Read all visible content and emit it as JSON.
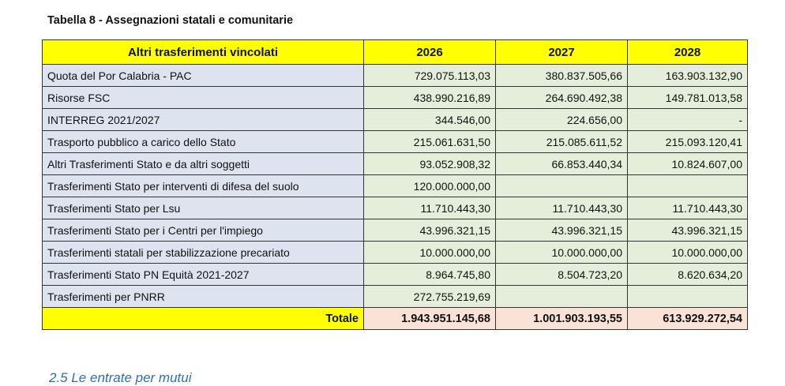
{
  "title": "Tabella 8 - Assegnazioni statali e comunitarie",
  "table": {
    "headers": [
      "Altri trasferimenti vincolati",
      "2026",
      "2027",
      "2028"
    ],
    "rows": [
      [
        "Quota del Por Calabria - PAC",
        "729.075.113,03",
        "380.837.505,66",
        "163.903.132,90"
      ],
      [
        "Risorse FSC",
        "438.990.216,89",
        "264.690.492,38",
        "149.781.013,58"
      ],
      [
        "INTERREG 2021/2027",
        "344.546,00",
        "224.656,00",
        "-"
      ],
      [
        "Trasporto pubblico a carico dello Stato",
        "215.061.631,50",
        "215.085.611,52",
        "215.093.120,41"
      ],
      [
        "Altri Trasferimenti Stato e da altri soggetti",
        "93.052.908,32",
        "66.853.440,34",
        "10.824.607,00"
      ],
      [
        "Trasferimenti Stato per interventi di difesa del suolo",
        "120.000.000,00",
        "",
        ""
      ],
      [
        "Trasferimenti Stato per Lsu",
        "11.710.443,30",
        "11.710.443,30",
        "11.710.443,30"
      ],
      [
        "Trasferimenti Stato per i Centri per l'impiego",
        "43.996.321,15",
        "43.996.321,15",
        "43.996.321,15"
      ],
      [
        "Trasferimenti statali per stabilizzazione precariato",
        "10.000.000,00",
        "10.000.000,00",
        "10.000.000,00"
      ],
      [
        "Trasferimenti Stato PN Equità 2021-2027",
        "8.964.745,80",
        "8.504.723,20",
        "8.620.634,20"
      ],
      [
        "Trasferimenti per PNRR",
        "272.755.219,69",
        "",
        ""
      ]
    ],
    "total": [
      "Totale",
      "1.943.951.145,68",
      "1.001.903.193,55",
      "613.929.272,54"
    ]
  },
  "next_section": "2.5 Le entrate per mutui"
}
